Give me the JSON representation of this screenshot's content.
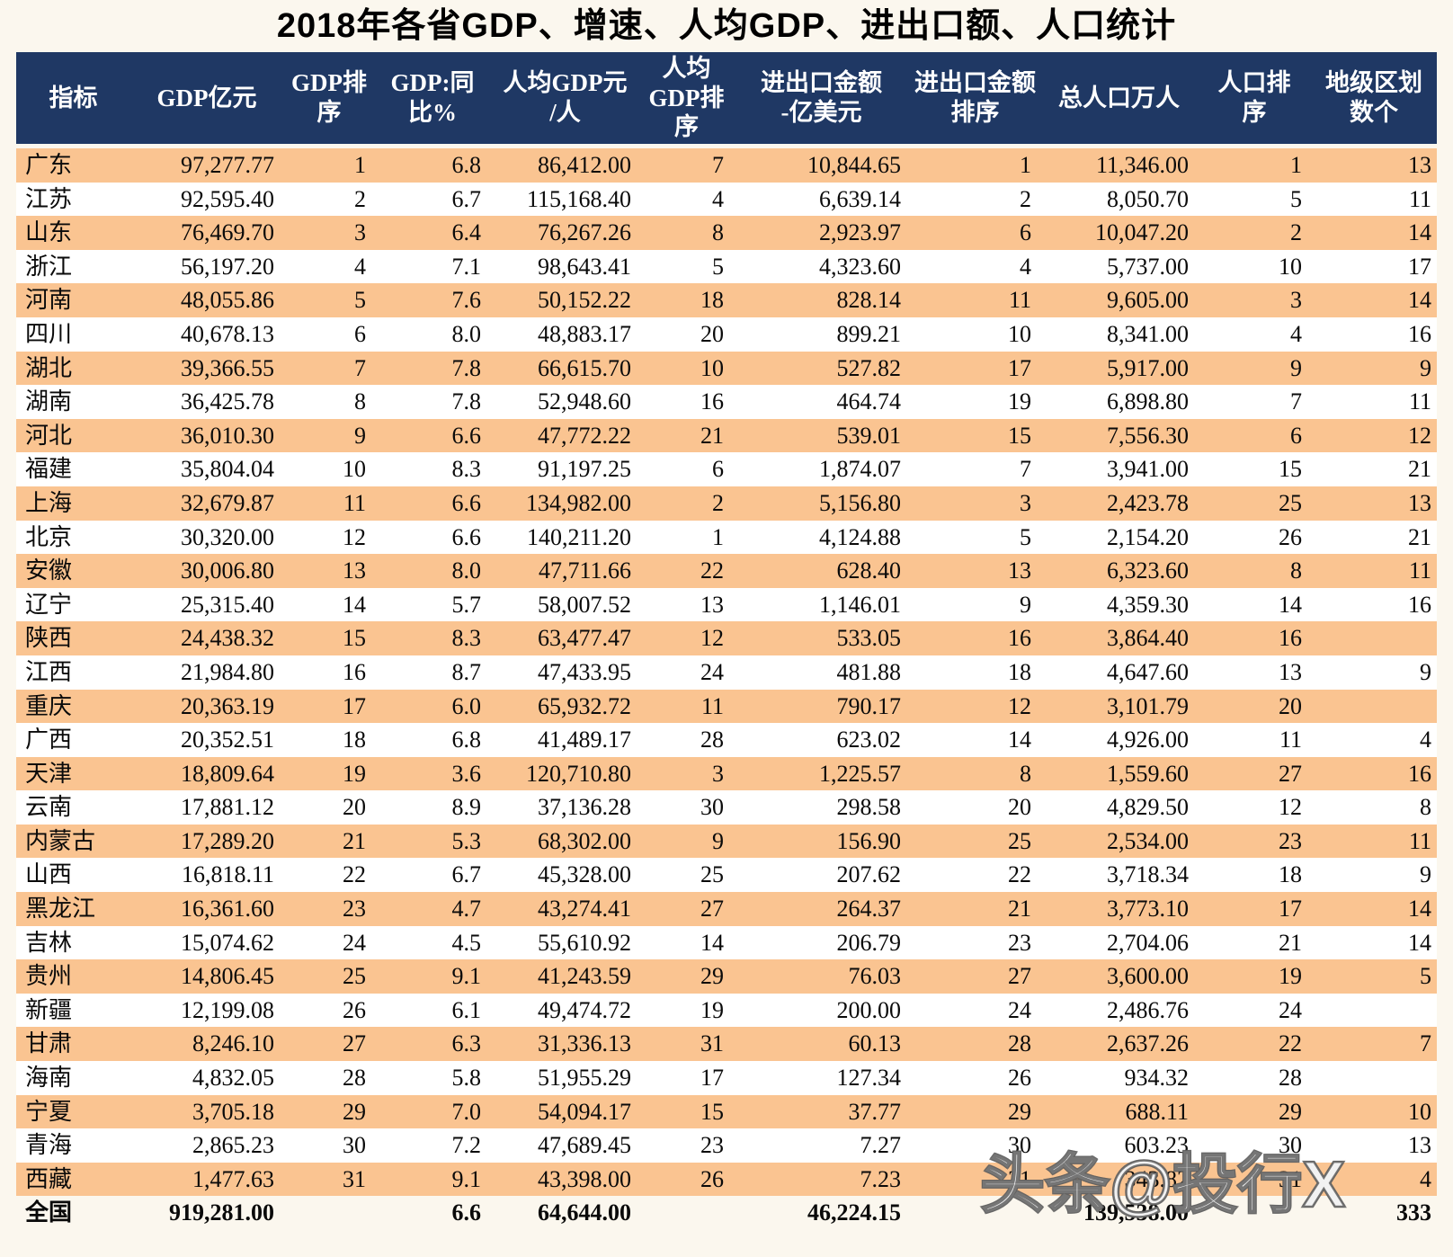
{
  "title": "2018年各省GDP、增速、人均GDP、进出口额、人口统计",
  "watermark": "头条@投行X",
  "colors": {
    "header_bg": "#1F3864",
    "header_text": "#FFFFFF",
    "row_stripe_orange": "#FAC491",
    "row_stripe_white": "#FFFFFF",
    "page_bg": "#FBF7EE",
    "body_text": "#0A0A0A"
  },
  "table": {
    "columns": [
      "指标",
      "GDP亿元",
      "GDP排\n序",
      "GDP:同\n比%",
      "人均GDP元\n/人",
      "人均\nGDP排\n序",
      "进出口金额\n-亿美元",
      "进出口金额\n排序",
      "总人口万人",
      "人口排\n序",
      "地级区划\n数个"
    ],
    "rows": [
      [
        "广东",
        "97,277.77",
        "1",
        "6.8",
        "86,412.00",
        "7",
        "10,844.65",
        "1",
        "11,346.00",
        "1",
        "13"
      ],
      [
        "江苏",
        "92,595.40",
        "2",
        "6.7",
        "115,168.40",
        "4",
        "6,639.14",
        "2",
        "8,050.70",
        "5",
        "11"
      ],
      [
        "山东",
        "76,469.70",
        "3",
        "6.4",
        "76,267.26",
        "8",
        "2,923.97",
        "6",
        "10,047.20",
        "2",
        "14"
      ],
      [
        "浙江",
        "56,197.20",
        "4",
        "7.1",
        "98,643.41",
        "5",
        "4,323.60",
        "4",
        "5,737.00",
        "10",
        "17"
      ],
      [
        "河南",
        "48,055.86",
        "5",
        "7.6",
        "50,152.22",
        "18",
        "828.14",
        "11",
        "9,605.00",
        "3",
        "14"
      ],
      [
        "四川",
        "40,678.13",
        "6",
        "8.0",
        "48,883.17",
        "20",
        "899.21",
        "10",
        "8,341.00",
        "4",
        "16"
      ],
      [
        "湖北",
        "39,366.55",
        "7",
        "7.8",
        "66,615.70",
        "10",
        "527.82",
        "17",
        "5,917.00",
        "9",
        "9"
      ],
      [
        "湖南",
        "36,425.78",
        "8",
        "7.8",
        "52,948.60",
        "16",
        "464.74",
        "19",
        "6,898.80",
        "7",
        "11"
      ],
      [
        "河北",
        "36,010.30",
        "9",
        "6.6",
        "47,772.22",
        "21",
        "539.01",
        "15",
        "7,556.30",
        "6",
        "12"
      ],
      [
        "福建",
        "35,804.04",
        "10",
        "8.3",
        "91,197.25",
        "6",
        "1,874.07",
        "7",
        "3,941.00",
        "15",
        "21"
      ],
      [
        "上海",
        "32,679.87",
        "11",
        "6.6",
        "134,982.00",
        "2",
        "5,156.80",
        "3",
        "2,423.78",
        "25",
        "13"
      ],
      [
        "北京",
        "30,320.00",
        "12",
        "6.6",
        "140,211.20",
        "1",
        "4,124.88",
        "5",
        "2,154.20",
        "26",
        "21"
      ],
      [
        "安徽",
        "30,006.80",
        "13",
        "8.0",
        "47,711.66",
        "22",
        "628.40",
        "13",
        "6,323.60",
        "8",
        "11"
      ],
      [
        "辽宁",
        "25,315.40",
        "14",
        "5.7",
        "58,007.52",
        "13",
        "1,146.01",
        "9",
        "4,359.30",
        "14",
        "16"
      ],
      [
        "陕西",
        "24,438.32",
        "15",
        "8.3",
        "63,477.47",
        "12",
        "533.05",
        "16",
        "3,864.40",
        "16",
        ""
      ],
      [
        "江西",
        "21,984.80",
        "16",
        "8.7",
        "47,433.95",
        "24",
        "481.88",
        "18",
        "4,647.60",
        "13",
        "9"
      ],
      [
        "重庆",
        "20,363.19",
        "17",
        "6.0",
        "65,932.72",
        "11",
        "790.17",
        "12",
        "3,101.79",
        "20",
        ""
      ],
      [
        "广西",
        "20,352.51",
        "18",
        "6.8",
        "41,489.17",
        "28",
        "623.02",
        "14",
        "4,926.00",
        "11",
        "4"
      ],
      [
        "天津",
        "18,809.64",
        "19",
        "3.6",
        "120,710.80",
        "3",
        "1,225.57",
        "8",
        "1,559.60",
        "27",
        "16"
      ],
      [
        "云南",
        "17,881.12",
        "20",
        "8.9",
        "37,136.28",
        "30",
        "298.58",
        "20",
        "4,829.50",
        "12",
        "8"
      ],
      [
        "内蒙古",
        "17,289.20",
        "21",
        "5.3",
        "68,302.00",
        "9",
        "156.90",
        "25",
        "2,534.00",
        "23",
        "11"
      ],
      [
        "山西",
        "16,818.11",
        "22",
        "6.7",
        "45,328.00",
        "25",
        "207.62",
        "22",
        "3,718.34",
        "18",
        "9"
      ],
      [
        "黑龙江",
        "16,361.60",
        "23",
        "4.7",
        "43,274.41",
        "27",
        "264.37",
        "21",
        "3,773.10",
        "17",
        "14"
      ],
      [
        "吉林",
        "15,074.62",
        "24",
        "4.5",
        "55,610.92",
        "14",
        "206.79",
        "23",
        "2,704.06",
        "21",
        "14"
      ],
      [
        "贵州",
        "14,806.45",
        "25",
        "9.1",
        "41,243.59",
        "29",
        "76.03",
        "27",
        "3,600.00",
        "19",
        "5"
      ],
      [
        "新疆",
        "12,199.08",
        "26",
        "6.1",
        "49,474.72",
        "19",
        "200.00",
        "24",
        "2,486.76",
        "24",
        ""
      ],
      [
        "甘肃",
        "8,246.10",
        "27",
        "6.3",
        "31,336.13",
        "31",
        "60.13",
        "28",
        "2,637.26",
        "22",
        "7"
      ],
      [
        "海南",
        "4,832.05",
        "28",
        "5.8",
        "51,955.29",
        "17",
        "127.34",
        "26",
        "934.32",
        "28",
        ""
      ],
      [
        "宁夏",
        "3,705.18",
        "29",
        "7.0",
        "54,094.17",
        "15",
        "37.77",
        "29",
        "688.11",
        "29",
        "10"
      ],
      [
        "青海",
        "2,865.23",
        "30",
        "7.2",
        "47,689.45",
        "23",
        "7.27",
        "30",
        "603.23",
        "30",
        "13"
      ],
      [
        "西藏",
        "1,477.63",
        "31",
        "9.1",
        "43,398.00",
        "26",
        "7.23",
        "31",
        "343.82",
        "31",
        "4"
      ]
    ],
    "total_row": [
      "全国",
      "919,281.00",
      "",
      "6.6",
      "64,644.00",
      "",
      "46,224.15",
      "",
      "139,538.00",
      "",
      "333"
    ]
  }
}
